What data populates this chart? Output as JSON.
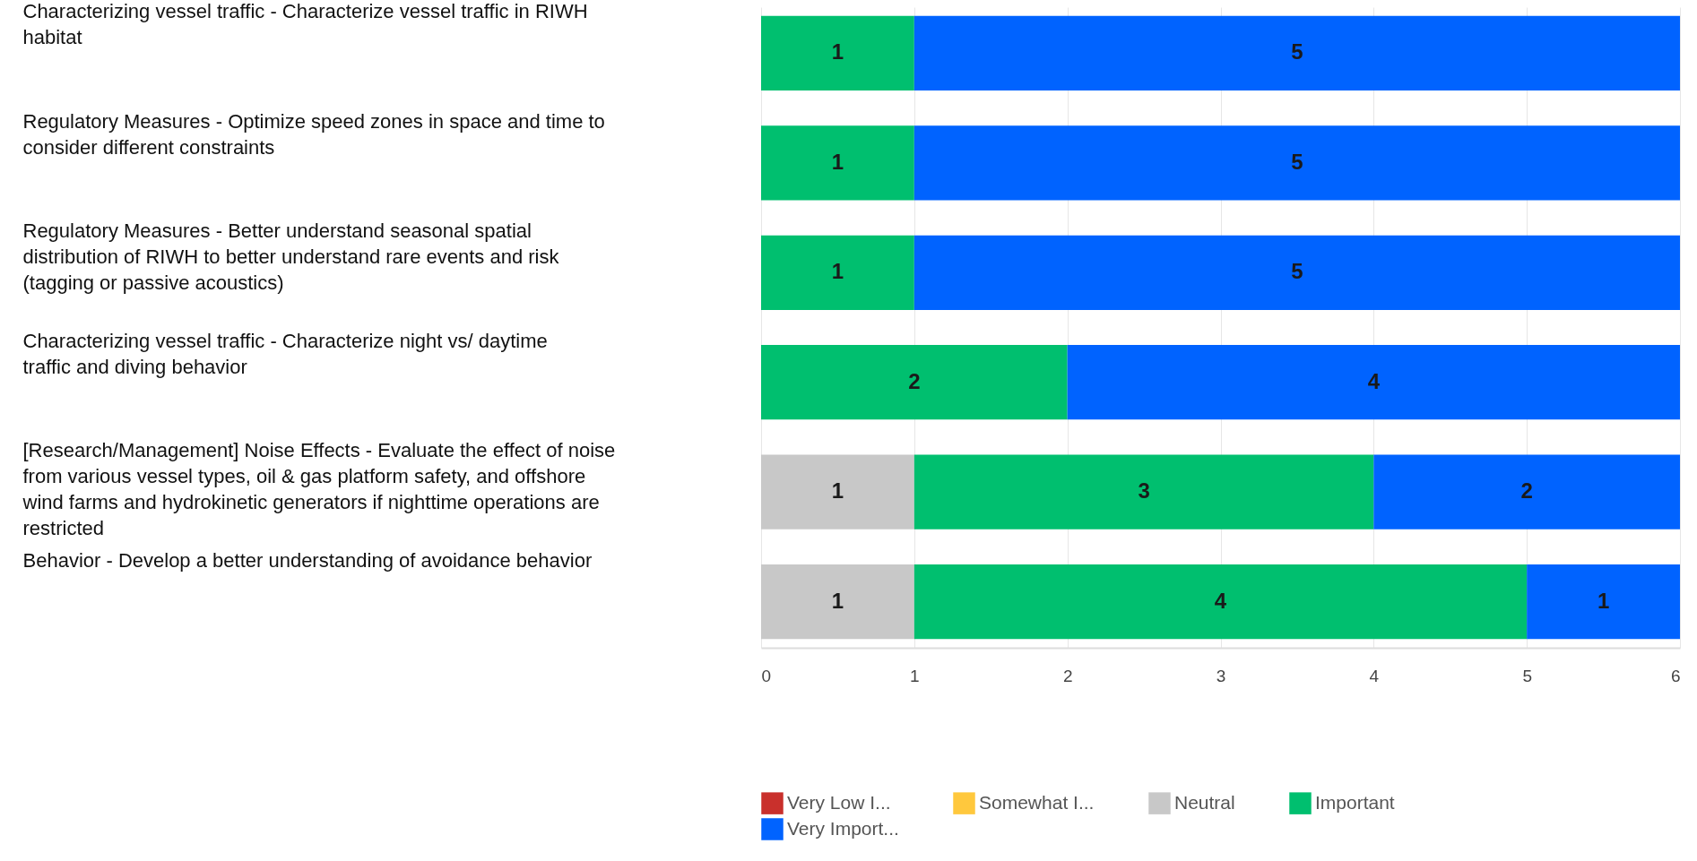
{
  "chart_data": {
    "type": "bar",
    "orientation": "horizontal",
    "stacked": true,
    "data_labels": true,
    "grid": "x",
    "legend": "bottom",
    "categories": [
      "Characterizing vessel traffic - Characterize vessel traffic in RIWH habitat",
      "Regulatory Measures - Optimize speed zones in space and time to consider different constraints",
      "Regulatory Measures - Better understand seasonal spatial distribution of RIWH to better understand rare events and risk (tagging or passive acoustics)",
      "Characterizing vessel traffic - Characterize night vs/ daytime traffic and diving behavior",
      "[Research/Management] Noise Effects - Evaluate the effect of noise from various vessel types, oil & gas platform safety, and offshore wind farms and hydrokinetic generators if nighttime operations are restricted",
      "Behavior - Develop a better understanding of avoidance behavior"
    ],
    "xlim": [
      0,
      6
    ],
    "xticks": [
      0,
      1,
      2,
      3,
      4,
      5,
      6
    ],
    "series": [
      {
        "name": "Very Low I...",
        "color": "#c9302c",
        "values": [
          null,
          null,
          null,
          null,
          null,
          null
        ]
      },
      {
        "name": "Somewhat I...",
        "color": "#ffc83d",
        "values": [
          null,
          null,
          null,
          null,
          null,
          null
        ]
      },
      {
        "name": "Neutral",
        "color": "#c8c8c8",
        "values": [
          null,
          null,
          null,
          null,
          1,
          1
        ]
      },
      {
        "name": "Important",
        "color": "#00bf6f",
        "values": [
          1,
          1,
          1,
          2,
          3,
          4
        ]
      },
      {
        "name": "Very Import...",
        "color": "#0063ff",
        "values": [
          5,
          5,
          5,
          4,
          2,
          1
        ]
      }
    ]
  }
}
